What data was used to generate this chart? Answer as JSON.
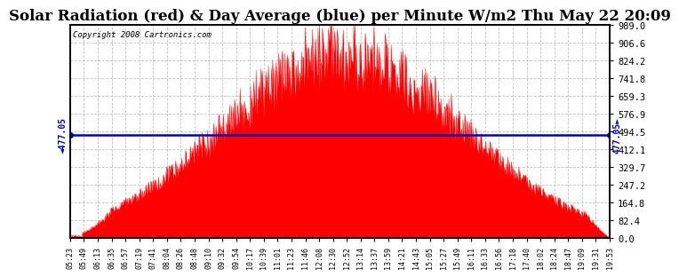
{
  "title": "Solar Radiation (red) & Day Average (blue) per Minute W/m2 Thu May 22 20:09",
  "copyright": "Copyright 2008 Cartronics.com",
  "y_max": 989.0,
  "y_min": 0.0,
  "y_ticks": [
    0.0,
    82.4,
    164.8,
    247.2,
    329.7,
    412.1,
    494.5,
    576.9,
    659.3,
    741.8,
    824.2,
    906.6,
    989.0
  ],
  "day_average": 477.05,
  "fill_color": "#FF0000",
  "line_color": "#0000BB",
  "background_color": "#FFFFFF",
  "grid_color": "#BBBBBB",
  "title_fontsize": 12,
  "x_tick_labels": [
    "05:23",
    "05:49",
    "06:13",
    "06:35",
    "06:57",
    "07:19",
    "07:41",
    "08:04",
    "08:26",
    "08:48",
    "09:10",
    "09:32",
    "09:54",
    "10:17",
    "10:39",
    "11:01",
    "11:23",
    "11:46",
    "12:08",
    "12:30",
    "12:52",
    "13:14",
    "13:37",
    "13:59",
    "14:21",
    "14:43",
    "15:05",
    "15:27",
    "15:49",
    "16:11",
    "16:33",
    "16:56",
    "17:18",
    "17:40",
    "18:02",
    "18:24",
    "18:47",
    "19:09",
    "19:31",
    "19:53"
  ],
  "n_points": 880
}
